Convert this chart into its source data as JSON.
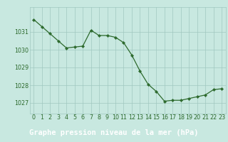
{
  "hours": [
    0,
    1,
    2,
    3,
    4,
    5,
    6,
    7,
    8,
    9,
    10,
    11,
    12,
    13,
    14,
    15,
    16,
    17,
    18,
    19,
    20,
    21,
    22,
    23
  ],
  "pressure": [
    1031.7,
    1031.3,
    1030.9,
    1030.5,
    1030.1,
    1030.15,
    1030.2,
    1031.1,
    1030.8,
    1030.8,
    1030.7,
    1030.4,
    1029.7,
    1028.8,
    1028.05,
    1027.65,
    1027.1,
    1027.15,
    1027.15,
    1027.25,
    1027.35,
    1027.45,
    1027.75,
    1027.8
  ],
  "line_color": "#2d6a2d",
  "marker_color": "#2d6a2d",
  "bg_color": "#c8e8e0",
  "grid_color": "#a0c8c0",
  "bottom_bar_color": "#3a7a3a",
  "title": "Graphe pression niveau de la mer (hPa)",
  "ylabel_ticks": [
    1027,
    1028,
    1029,
    1030,
    1031
  ],
  "ylim": [
    1026.4,
    1032.4
  ],
  "xlim": [
    -0.5,
    23.5
  ],
  "xlabel_ticks": [
    0,
    1,
    2,
    3,
    4,
    5,
    6,
    7,
    8,
    9,
    10,
    11,
    12,
    13,
    14,
    15,
    16,
    17,
    18,
    19,
    20,
    21,
    22,
    23
  ],
  "title_fontsize": 7.5,
  "tick_fontsize": 5.8,
  "title_color": "#ffffff",
  "tick_color": "#2d6a2d"
}
